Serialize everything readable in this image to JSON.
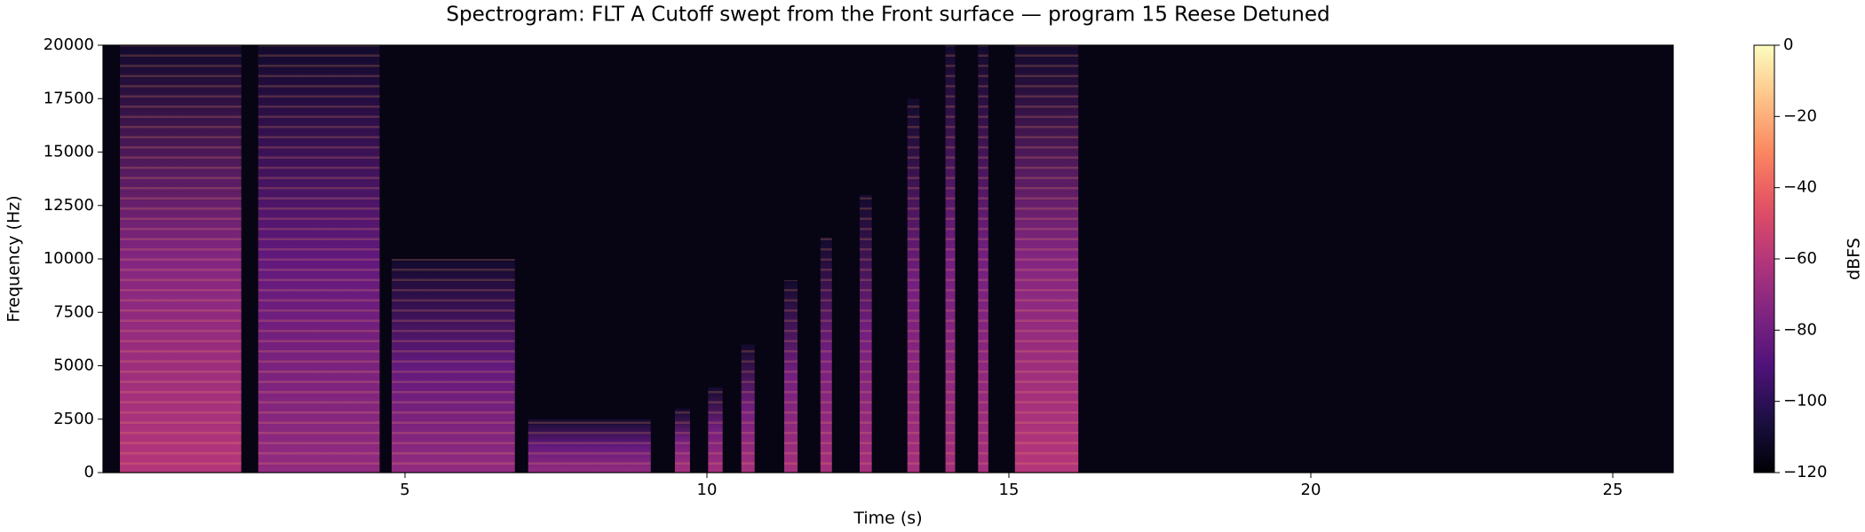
{
  "chart_data": {
    "type": "spectrogram",
    "title": "Spectrogram: FLT A Cutoff swept from the Front surface — program 15 Reese Detuned",
    "x_label": "Time (s)",
    "y_label": "Frequency (Hz)",
    "colorbar_label": "dBFS",
    "colormap": "magma",
    "xlim": [
      0,
      26
    ],
    "xticks": [
      5,
      10,
      15,
      20,
      25
    ],
    "ylim": [
      0,
      20000
    ],
    "yticks": [
      0,
      2500,
      5000,
      7500,
      10000,
      12500,
      15000,
      17500,
      20000
    ],
    "clim": [
      -120,
      0
    ],
    "cticks": [
      {
        "value": 0,
        "label": "0"
      },
      {
        "value": -20,
        "label": "−20"
      },
      {
        "value": -40,
        "label": "−40"
      },
      {
        "value": -60,
        "label": "−60"
      },
      {
        "value": -80,
        "label": "−80"
      },
      {
        "value": -100,
        "label": "−100"
      },
      {
        "value": -120,
        "label": "−120"
      }
    ],
    "bursts": [
      {
        "start": 0.28,
        "end": 2.29,
        "fmax": 20000,
        "level": -60
      },
      {
        "start": 2.57,
        "end": 4.58,
        "fmax": 20000,
        "level": -70
      },
      {
        "start": 4.78,
        "end": 6.82,
        "fmax": 10000,
        "level": -70
      },
      {
        "start": 7.04,
        "end": 9.07,
        "fmax": 2500,
        "level": -70
      },
      {
        "start": 9.47,
        "end": 9.72,
        "fmax": 3000,
        "level": -65
      },
      {
        "start": 10.02,
        "end": 10.26,
        "fmax": 4000,
        "level": -65
      },
      {
        "start": 10.57,
        "end": 10.79,
        "fmax": 6000,
        "level": -65
      },
      {
        "start": 11.28,
        "end": 11.5,
        "fmax": 9000,
        "level": -65
      },
      {
        "start": 11.88,
        "end": 12.07,
        "fmax": 11000,
        "level": -65
      },
      {
        "start": 12.53,
        "end": 12.73,
        "fmax": 13000,
        "level": -65
      },
      {
        "start": 13.32,
        "end": 13.52,
        "fmax": 17500,
        "level": -65
      },
      {
        "start": 13.95,
        "end": 14.11,
        "fmax": 20000,
        "level": -65
      },
      {
        "start": 14.49,
        "end": 14.66,
        "fmax": 20000,
        "level": -65
      },
      {
        "start": 15.1,
        "end": 16.15,
        "fmax": 20000,
        "level": -60
      }
    ]
  }
}
